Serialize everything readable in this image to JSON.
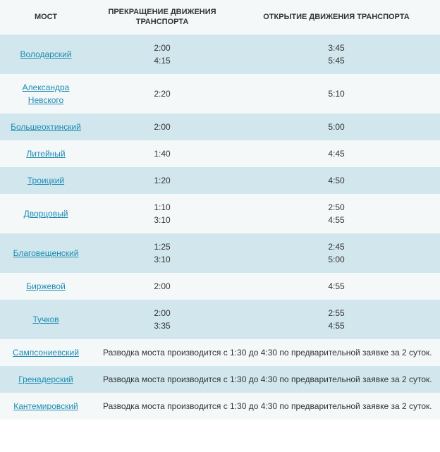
{
  "header": {
    "col_bridge": "МОСТ",
    "col_close": "ПРЕКРАЩЕНИЕ ДВИЖЕНИЯ ТРАНСПОРТА",
    "col_open": "ОТКРЫТИЕ ДВИЖЕНИЯ ТРАНСПОРТА"
  },
  "rows": [
    {
      "name": "Володарский",
      "close": "2:00\n4:15",
      "open": "3:45\n5:45"
    },
    {
      "name": "Александра Невского",
      "close": "2:20",
      "open": "5:10"
    },
    {
      "name": "Большеохтинский",
      "close": "2:00",
      "open": "5:00"
    },
    {
      "name": "Литейный",
      "close": "1:40",
      "open": "4:45"
    },
    {
      "name": "Троицкий",
      "close": "1:20",
      "open": "4:50"
    },
    {
      "name": "Дворцовый",
      "close": "1:10\n3:10",
      "open": "2:50\n4:55"
    },
    {
      "name": "Благовещенский",
      "close": "1:25\n3:10",
      "open": "2:45\n5:00"
    },
    {
      "name": "Биржевой",
      "close": "2:00",
      "open": "4:55"
    },
    {
      "name": "Тучков",
      "close": "2:00\n3:35",
      "open": "2:55\n4:55"
    },
    {
      "name": "Сампсониевский",
      "note": "Разводка моста производится с 1:30 до 4:30 по предварительной заявке за 2 суток."
    },
    {
      "name": "Гренадерский",
      "note": "Разводка моста производится с 1:30 до 4:30 по предварительной заявке за 2 суток."
    },
    {
      "name": "Кантемировский",
      "note": "Разводка моста производится с 1:30 до 4:30 по предварительной заявке за 2 суток."
    }
  ],
  "style": {
    "row_odd_bg": "#d2e7ed",
    "row_even_bg": "#f5f8f9",
    "header_bg": "#f5f8f9",
    "link_color": "#1a8bb3",
    "text_color": "#333333",
    "font_size_body": 12,
    "font_size_header": 11
  }
}
